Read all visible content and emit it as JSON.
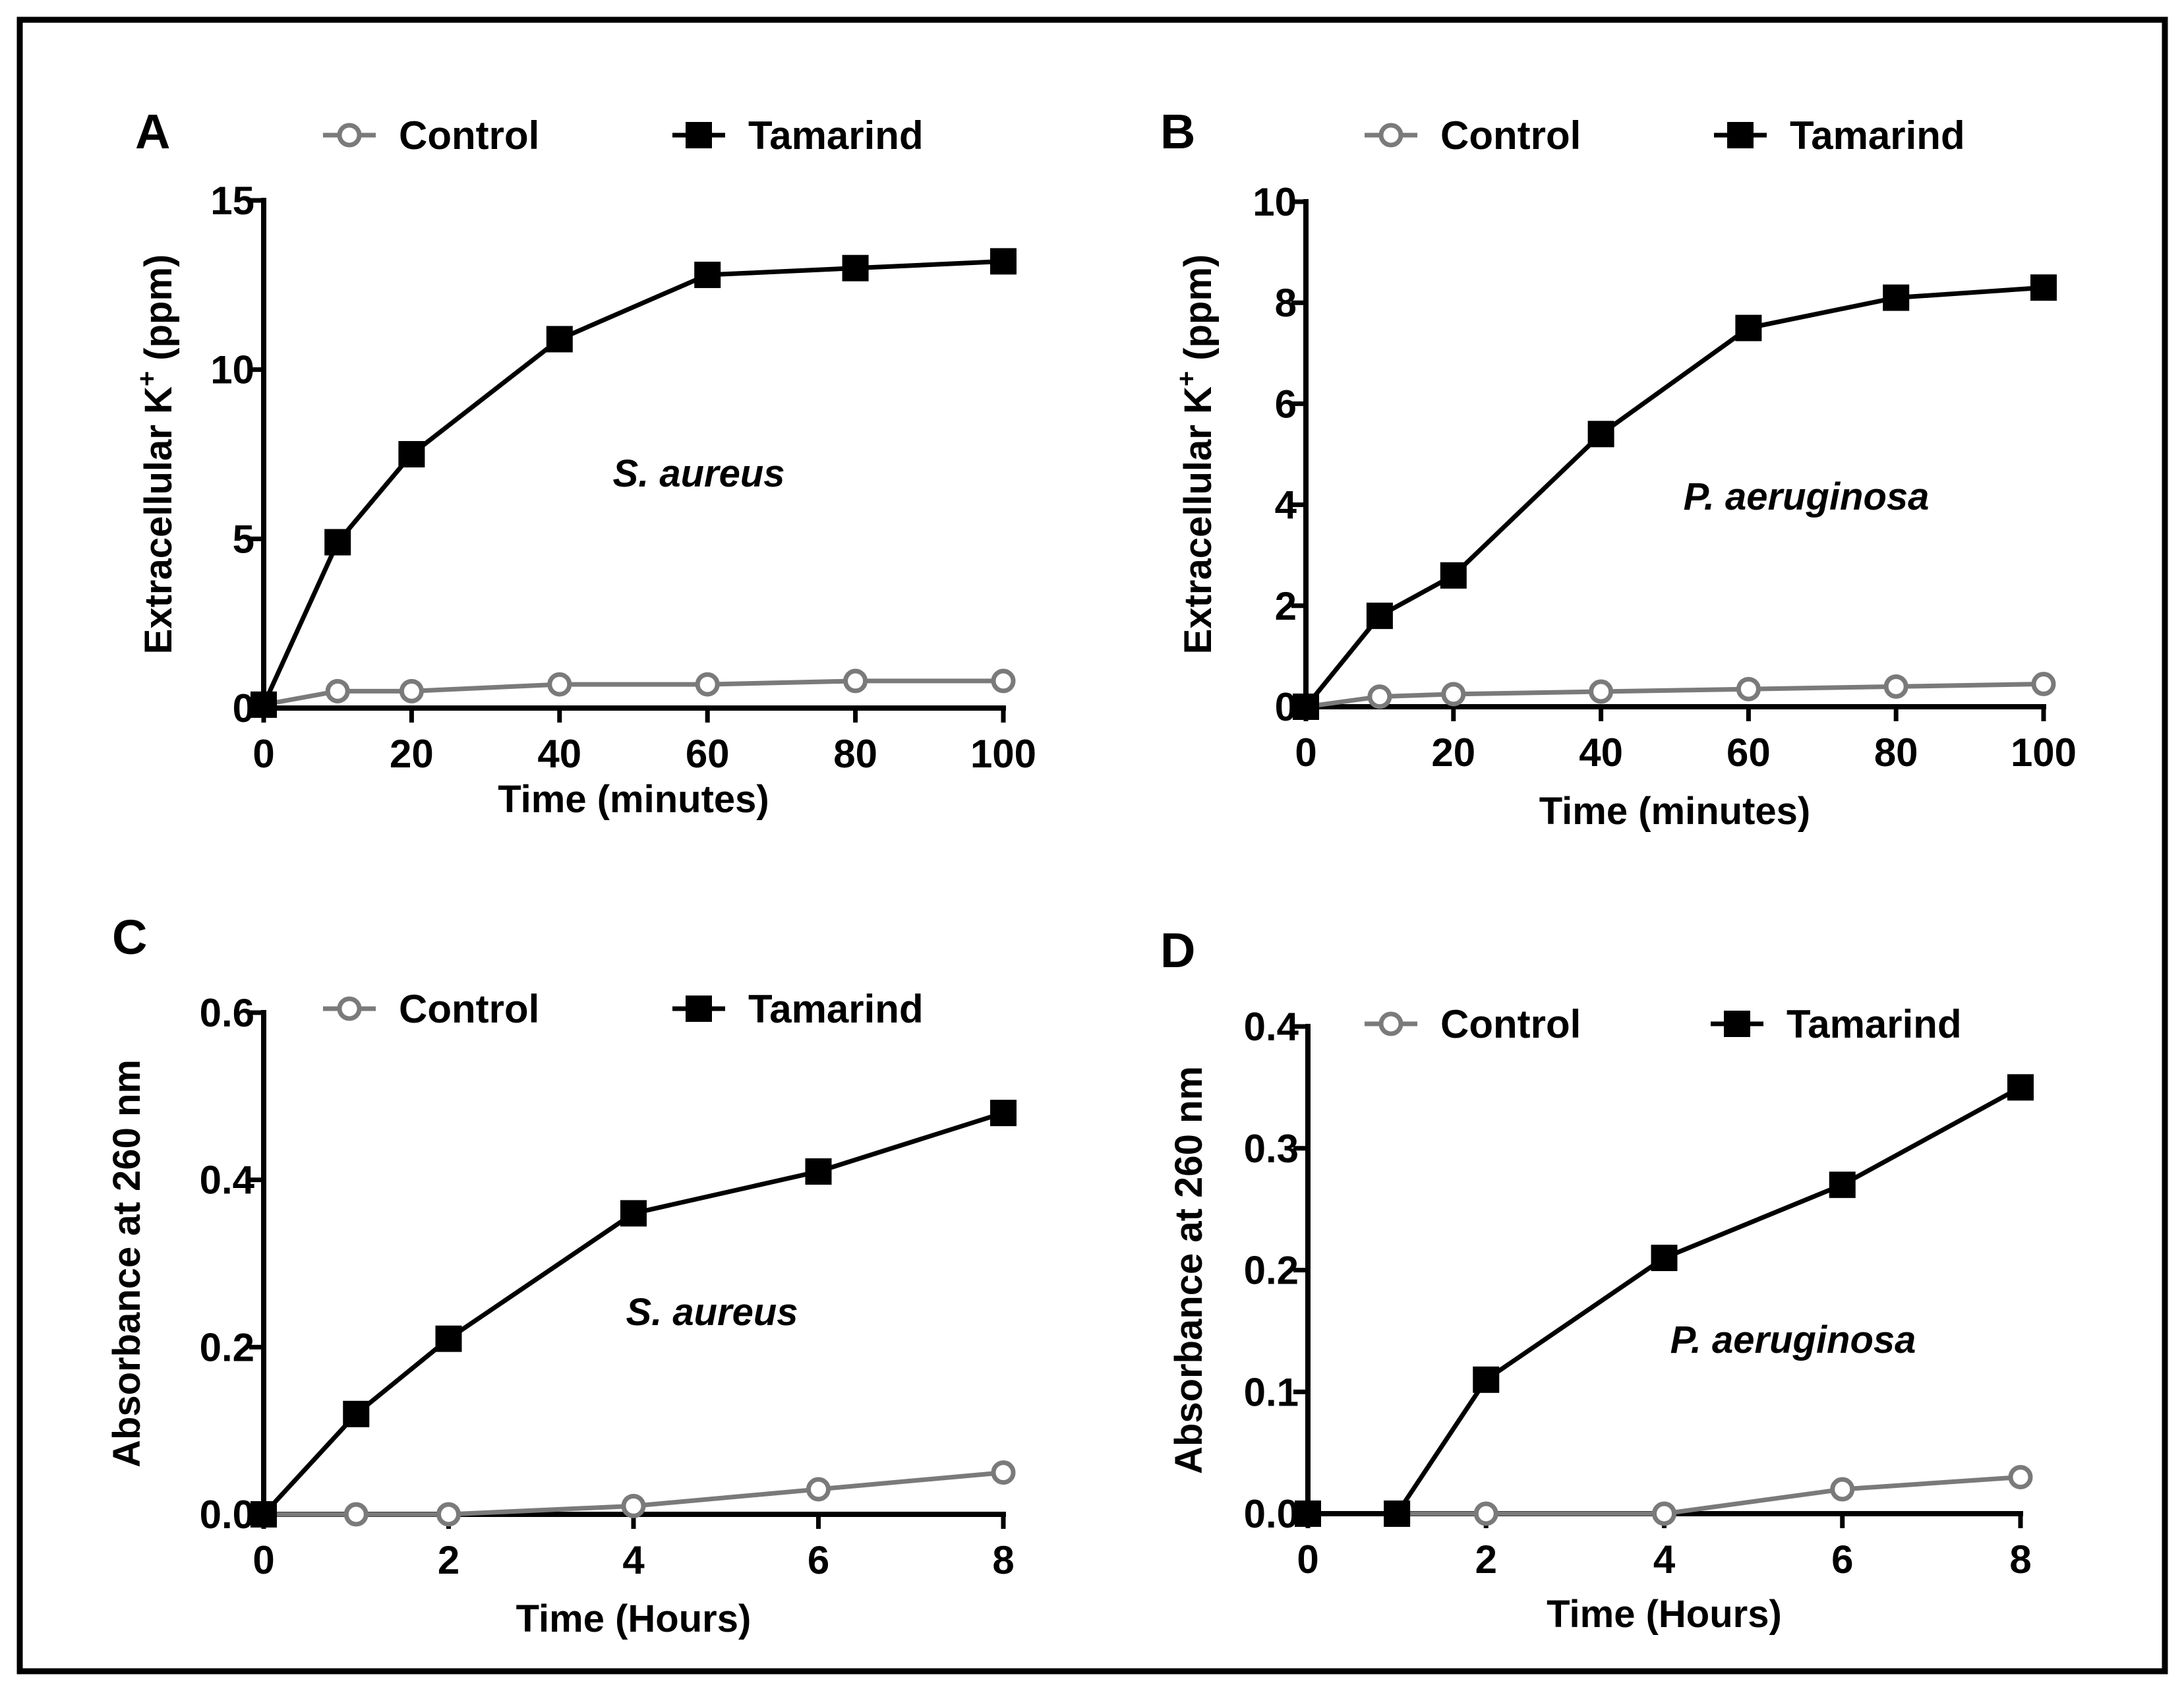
{
  "figure": {
    "colors": {
      "control": "#7a7a7a",
      "tamarind": "#000000",
      "axis": "#000000",
      "background": "#ffffff"
    }
  },
  "chart_data": [
    {
      "panel": "A",
      "type": "line",
      "title": "",
      "xlabel": "Time (minutes)",
      "ylabel": "Extracellular K",
      "ylabel_sup": "+",
      "ylabel_suffix": " (ppm)",
      "annotation": "S. aureus",
      "xlim": [
        0,
        100
      ],
      "ylim": [
        0,
        15
      ],
      "xticks": [
        0,
        20,
        40,
        60,
        80,
        100
      ],
      "yticks": [
        0,
        5,
        10,
        15
      ],
      "legend": [
        "Control",
        "Tamarind"
      ],
      "series": [
        {
          "name": "Control",
          "marker": "open-circle",
          "x": [
            0,
            10,
            20,
            40,
            60,
            80,
            100
          ],
          "y": [
            0.1,
            0.5,
            0.5,
            0.7,
            0.7,
            0.8,
            0.8
          ]
        },
        {
          "name": "Tamarind",
          "marker": "filled-square",
          "x": [
            0,
            10,
            20,
            40,
            60,
            80,
            100
          ],
          "y": [
            0.1,
            4.9,
            7.5,
            10.9,
            12.8,
            13.0,
            13.2
          ]
        }
      ]
    },
    {
      "panel": "B",
      "type": "line",
      "title": "",
      "xlabel": "Time (minutes)",
      "ylabel": "Extracellular K",
      "ylabel_sup": "+",
      "ylabel_suffix": " (ppm)",
      "annotation": "P. aeruginosa",
      "xlim": [
        0,
        100
      ],
      "ylim": [
        0,
        10
      ],
      "xticks": [
        0,
        20,
        40,
        60,
        80,
        100
      ],
      "yticks": [
        0,
        2,
        4,
        6,
        8,
        10
      ],
      "legend": [
        "Control",
        "Tamarind"
      ],
      "series": [
        {
          "name": "Control",
          "marker": "open-circle",
          "x": [
            0,
            10,
            20,
            40,
            60,
            80,
            100
          ],
          "y": [
            0.0,
            0.2,
            0.25,
            0.3,
            0.35,
            0.4,
            0.45
          ]
        },
        {
          "name": "Tamarind",
          "marker": "filled-square",
          "x": [
            0,
            10,
            20,
            40,
            60,
            80,
            100
          ],
          "y": [
            0.0,
            1.8,
            2.6,
            5.4,
            7.5,
            8.1,
            8.3
          ]
        }
      ]
    },
    {
      "panel": "C",
      "type": "line",
      "title": "",
      "xlabel": "Time (Hours)",
      "ylabel": "Absorbance at 260 nm",
      "ylabel_sup": "",
      "ylabel_suffix": "",
      "annotation": "S. aureus",
      "xlim": [
        0,
        8
      ],
      "ylim": [
        0,
        0.6
      ],
      "xticks": [
        0,
        2,
        4,
        6,
        8
      ],
      "yticks": [
        0.0,
        0.2,
        0.4,
        0.6
      ],
      "ytick_decimals": 1,
      "legend": [
        "Control",
        "Tamarind"
      ],
      "series": [
        {
          "name": "Control",
          "marker": "open-circle",
          "x": [
            0,
            1,
            2,
            4,
            6,
            8
          ],
          "y": [
            0.0,
            0.0,
            0.0,
            0.01,
            0.03,
            0.05
          ]
        },
        {
          "name": "Tamarind",
          "marker": "filled-square",
          "x": [
            0,
            1,
            2,
            4,
            6,
            8
          ],
          "y": [
            0.0,
            0.12,
            0.21,
            0.36,
            0.41,
            0.48
          ]
        }
      ]
    },
    {
      "panel": "D",
      "type": "line",
      "title": "",
      "xlabel": "Time (Hours)",
      "ylabel": "Absorbance at 260 nm",
      "ylabel_sup": "",
      "ylabel_suffix": "",
      "annotation": "P. aeruginosa",
      "xlim": [
        0,
        8
      ],
      "ylim": [
        0,
        0.4
      ],
      "xticks": [
        0,
        2,
        4,
        6,
        8
      ],
      "yticks": [
        0.0,
        0.1,
        0.2,
        0.3,
        0.4
      ],
      "ytick_decimals": 1,
      "legend": [
        "Control",
        "Tamarind"
      ],
      "series": [
        {
          "name": "Control",
          "marker": "open-circle",
          "x": [
            0,
            1,
            2,
            4,
            6,
            8
          ],
          "y": [
            0.0,
            0.0,
            0.0,
            0.0,
            0.02,
            0.03
          ]
        },
        {
          "name": "Tamarind",
          "marker": "filled-square",
          "x": [
            0,
            1,
            2,
            4,
            6,
            8
          ],
          "y": [
            0.0,
            0.0,
            0.11,
            0.21,
            0.27,
            0.35
          ]
        }
      ]
    }
  ]
}
